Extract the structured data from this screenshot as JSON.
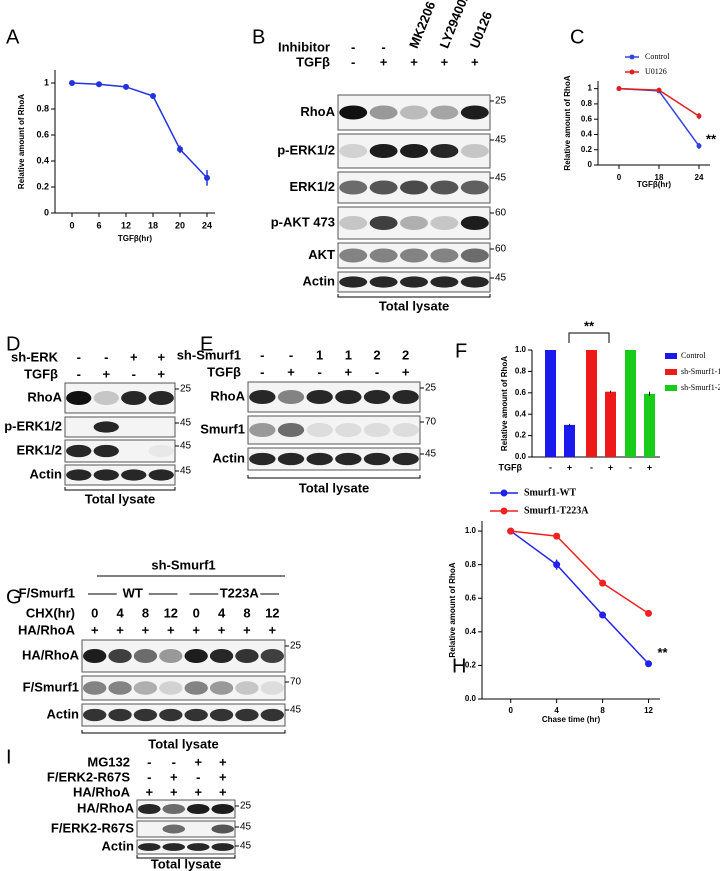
{
  "chart_data": [
    {
      "panel": "A",
      "type": "line",
      "categories": [
        "0",
        "6",
        "12",
        "18",
        "20",
        "24"
      ],
      "values": [
        1,
        0.99,
        0.97,
        0.9,
        0.49,
        0.27
      ],
      "errors": [
        0.005,
        0.005,
        0.01,
        0.01,
        0.03,
        0.06
      ],
      "color": "#2233dd",
      "ylim": [
        0,
        1.1
      ],
      "yticks": [
        0,
        0.2,
        0.4,
        0.6,
        0.8,
        1
      ],
      "xlabel": "TGFβ(hr)",
      "ylabel": "Relative amount of RhoA"
    },
    {
      "panel": "C",
      "type": "line",
      "categories": [
        "0",
        "18",
        "24"
      ],
      "series": [
        {
          "name": "Control",
          "color": "#3344dd",
          "values": [
            1,
            0.97,
            0.25
          ],
          "errors": [
            0,
            0.01,
            0.04
          ]
        },
        {
          "name": "U0126",
          "color": "#e02020",
          "values": [
            1,
            0.98,
            0.64
          ],
          "errors": [
            0,
            0.01,
            0.04
          ]
        }
      ],
      "ylim": [
        0,
        1.1
      ],
      "yticks": [
        0,
        0.2,
        0.4,
        0.6,
        0.8,
        1
      ],
      "xlabel": "TGFβ(hr)",
      "ylabel": "Relative amount of RhoA",
      "annotation": "**"
    },
    {
      "panel": "F",
      "type": "bar",
      "categories": [
        "-",
        "+"
      ],
      "series": [
        {
          "name": "Control",
          "color": "#1a1aee",
          "values": [
            1,
            0.3
          ],
          "errors": [
            0,
            0.01
          ]
        },
        {
          "name": "sh-Smurf1-1",
          "color": "#ee1a1a",
          "values": [
            1,
            0.61
          ],
          "errors": [
            0,
            0.01
          ]
        },
        {
          "name": "sh-Smurf1-2",
          "color": "#1acc1a",
          "values": [
            1,
            0.59
          ],
          "errors": [
            0,
            0.02
          ]
        }
      ],
      "ylim": [
        0,
        1
      ],
      "yticks": [
        {
          "value": 0,
          "label": "0.0"
        },
        0.2,
        0.4,
        0.6,
        0.8,
        {
          "value": 1,
          "label": "1.0"
        }
      ],
      "xlabel": "TGFβ",
      "ylabel": "Relative amount of RhoA",
      "annotation": "**"
    },
    {
      "panel": "H",
      "type": "line",
      "x": [
        0,
        4,
        8,
        12
      ],
      "xlim": [
        -2.5,
        13
      ],
      "xticks": [
        0,
        4,
        8,
        12
      ],
      "series": [
        {
          "name": "Smurf1-WT",
          "color": "#2222ee",
          "values": [
            1,
            0.8,
            0.5,
            0.21
          ],
          "errors": [
            0.01,
            0.03,
            0.02,
            0.01
          ]
        },
        {
          "name": "Smurf1-T223A",
          "color": "#ee2222",
          "values": [
            1,
            0.97,
            0.69,
            0.51
          ],
          "errors": [
            0.01,
            0.01,
            0.02,
            0.01
          ]
        }
      ],
      "ylim": [
        0,
        1.06
      ],
      "yticks": [
        {
          "value": 0,
          "label": "0.0"
        },
        0.2,
        0.4,
        0.6,
        0.8,
        {
          "value": 1,
          "label": "1.0"
        }
      ],
      "xlabel": "Chase time (hr)",
      "ylabel": "Relative amount of RhoA",
      "annotation": "**"
    }
  ],
  "blots": [
    {
      "panel": "B",
      "conditions": [
        {
          "name": "Inhibitor",
          "lanes": [
            "-",
            "-",
            "MK2206",
            "LY294002",
            "U0126"
          ]
        },
        {
          "name": "TGFβ",
          "lanes": [
            "-",
            "+",
            "+",
            "+",
            "+"
          ]
        }
      ],
      "rows": [
        {
          "name": "RhoA",
          "marker": 25
        },
        {
          "name": "p-ERK1/2",
          "marker": 45
        },
        {
          "name": "ERK1/2",
          "marker": 45
        },
        {
          "name": "p-AKT 473",
          "marker": 60
        },
        {
          "name": "AKT",
          "marker": 60
        },
        {
          "name": "Actin",
          "marker": 45
        }
      ],
      "footer": "Total lysate"
    },
    {
      "panel": "D",
      "conditions": [
        {
          "name": "sh-ERK",
          "lanes": [
            "-",
            "-",
            "+",
            "+"
          ]
        },
        {
          "name": "TGFβ",
          "lanes": [
            "-",
            "+",
            "-",
            "+"
          ]
        }
      ],
      "rows": [
        {
          "name": "RhoA",
          "marker": 25
        },
        {
          "name": "p-ERK1/2",
          "marker": 45
        },
        {
          "name": "ERK1/2",
          "marker": 45
        },
        {
          "name": "Actin",
          "marker": 45
        }
      ],
      "footer": "Total lysate"
    },
    {
      "panel": "E",
      "conditions": [
        {
          "name": "sh-Smurf1",
          "lanes": [
            "-",
            "-",
            "1",
            "1",
            "2",
            "2"
          ]
        },
        {
          "name": "TGFβ",
          "lanes": [
            "-",
            "+",
            "-",
            "+",
            "-",
            "+"
          ]
        }
      ],
      "rows": [
        {
          "name": "RhoA",
          "marker": 25
        },
        {
          "name": "Smurf1",
          "marker": 70
        },
        {
          "name": "Actin",
          "marker": 45
        }
      ],
      "footer": "Total lysate"
    },
    {
      "panel": "G",
      "header": "sh-Smurf1",
      "conditions": [
        {
          "name": "F/Smurf1",
          "groups": [
            "WT",
            "T223A"
          ]
        },
        {
          "name": "CHX(hr)",
          "lanes": [
            "0",
            "4",
            "8",
            "12",
            "0",
            "4",
            "8",
            "12"
          ]
        },
        {
          "name": "HA/RhoA",
          "lanes": [
            "+",
            "+",
            "+",
            "+",
            "+",
            "+",
            "+",
            "+"
          ]
        }
      ],
      "rows": [
        {
          "name": "HA/RhoA",
          "marker": 25
        },
        {
          "name": "F/Smurf1",
          "marker": 70
        },
        {
          "name": "Actin",
          "marker": 45
        }
      ],
      "footer": "Total lysate"
    },
    {
      "panel": "I",
      "conditions": [
        {
          "name": "MG132",
          "lanes": [
            "-",
            "-",
            "+",
            "+"
          ]
        },
        {
          "name": "F/ERK2-R67S",
          "lanes": [
            "-",
            "+",
            "-",
            "+"
          ]
        },
        {
          "name": "HA/RhoA",
          "lanes": [
            "+",
            "+",
            "+",
            "+"
          ]
        }
      ],
      "rows": [
        {
          "name": "HA/RhoA",
          "marker": 25
        },
        {
          "name": "F/ERK2-R67S",
          "marker": 45
        },
        {
          "name": "Actin",
          "marker": 45
        }
      ],
      "footer": "Total lysate"
    }
  ]
}
